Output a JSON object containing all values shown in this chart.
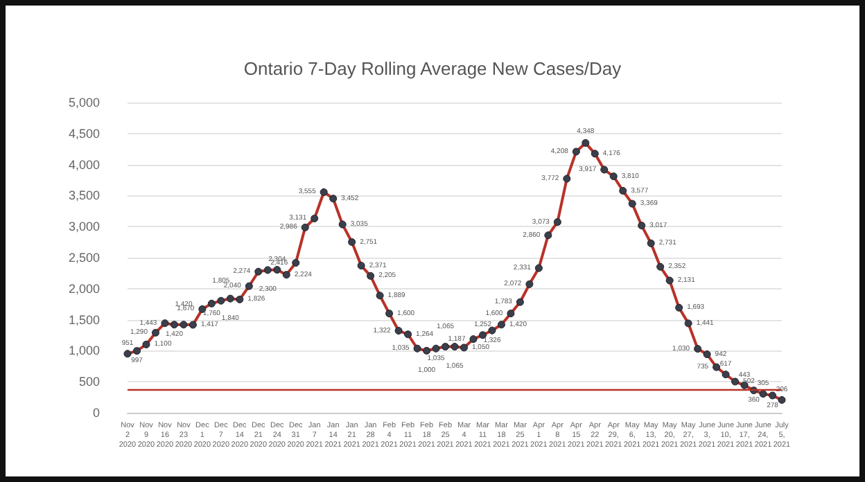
{
  "chart_data": {
    "type": "line",
    "title": "Ontario 7-Day Rolling Average New Cases/Day",
    "categories": [
      "Nov 2 2020",
      null,
      "Nov 9 2020",
      null,
      "Nov 16 2020",
      null,
      "Nov 23 2020",
      null,
      "Dec 1 2020",
      null,
      "Dec 7 2020",
      null,
      "Dec 14 2020",
      null,
      "Dec 21 2020",
      null,
      "Dec 24 2020",
      null,
      "Dec 31 2020",
      null,
      "Jan 7 2021",
      null,
      "Jan 14 2021",
      null,
      "Jan 21 2021",
      null,
      "Jan 28 2021",
      null,
      "Feb 4 2021",
      null,
      "Feb 11 2021",
      null,
      "Feb 18 2021",
      null,
      "Feb 25 2021",
      null,
      "Mar 4 2021",
      null,
      "Mar 11 2021",
      null,
      "Mar 18 2021",
      null,
      "Mar 25 2021",
      null,
      "Apr 1 2021",
      null,
      "Apr 8 2021",
      null,
      "Apr 15 2021",
      null,
      "Apr 22 2021",
      null,
      "Apr 29, 2021",
      null,
      "May 6, 2021",
      null,
      "May 13, 2021",
      null,
      "May 20, 2021",
      null,
      "May 27, 2021",
      null,
      "June 3, 2021",
      null,
      "June 10, 2021",
      null,
      "June 17, 2021",
      null,
      "June 24, 2021",
      null,
      "July 5, 2021"
    ],
    "series": [
      {
        "color": "#b83228",
        "values": [
          951,
          997,
          1100,
          1290,
          1443,
          1420,
          1420,
          1417,
          1670,
          1760,
          1805,
          1840,
          1826,
          2040,
          2274,
          2300,
          2304,
          2224,
          2416,
          2986,
          3131,
          3555,
          3452,
          3035,
          2751,
          2371,
          2205,
          1889,
          1600,
          1322,
          1264,
          1035,
          1000,
          1035,
          1065,
          1065,
          1050,
          1187,
          1252,
          1326,
          1420,
          1600,
          1783,
          2072,
          2331,
          2860,
          3073,
          3772,
          4208,
          4348,
          4176,
          3917,
          3810,
          3577,
          3369,
          3017,
          2731,
          2352,
          2131,
          1693,
          1441,
          1030,
          942,
          735,
          617,
          502,
          443,
          360,
          305,
          278,
          206
        ],
        "value_labels": [
          "951",
          "997",
          "1,100",
          "1,290",
          "1,443",
          "1,420",
          "1,420",
          "1,417",
          "1,670",
          "1,760",
          "1,805",
          "1,840",
          "1,826",
          "2,040",
          "2,274",
          "2,300",
          "2,304",
          "2,224",
          "2,416",
          "2,986",
          "3,131",
          "3,555",
          "3,452",
          "3,035",
          "2,751",
          "2,371",
          "2,205",
          "1,889",
          "1,600",
          "1,322",
          "1,264",
          "1,035",
          "1,000",
          "1,035",
          "1,065",
          "1,065",
          "1,050",
          "1,187",
          "1,252",
          "1,326",
          "1,420",
          "1,600",
          "1,783",
          "2,072",
          "2,331",
          "2,860",
          "3,073",
          "3,772",
          "4,208",
          "4,348",
          "4,176",
          "3,917",
          "3,810",
          "3,577",
          "3,369",
          "3,017",
          "2,731",
          "2,352",
          "2,131",
          "1,693",
          "1,441",
          "1,030",
          "942",
          "735",
          "617",
          "502",
          "443",
          "360",
          "305",
          "278",
          "206"
        ]
      }
    ],
    "ylim": [
      0,
      5000
    ],
    "yticks": [
      0,
      500,
      {
        "value": 1000,
        "label": "1,000"
      },
      {
        "value": 1500,
        "label": "1,500"
      },
      {
        "value": 2000,
        "label": "2,000"
      },
      {
        "value": 2500,
        "label": "2,500"
      },
      {
        "value": 3000,
        "label": "3,000"
      },
      {
        "value": 3500,
        "label": "3,500"
      },
      {
        "value": 4000,
        "label": "4,000"
      },
      {
        "value": 4500,
        "label": "4,500"
      },
      {
        "value": 5000,
        "label": "5,000"
      }
    ],
    "ref_lines": [
      {
        "axis": "y",
        "value": 370,
        "color": "#b83228"
      }
    ],
    "grid": "y",
    "marker": "circle",
    "line_style": "solid"
  }
}
